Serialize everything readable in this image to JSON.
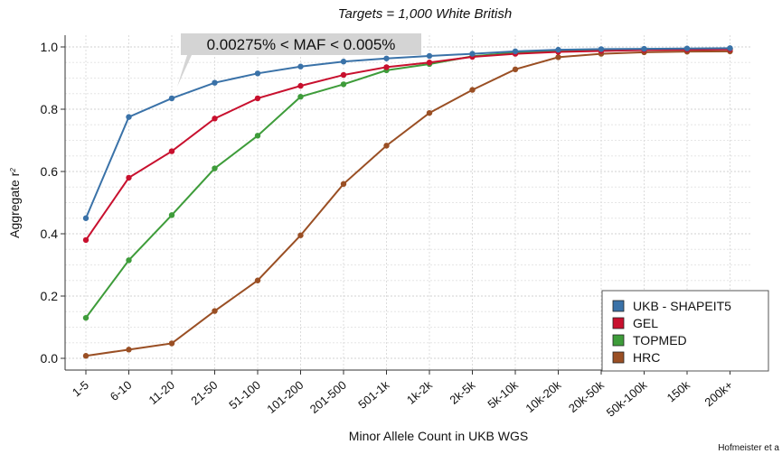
{
  "chart_data": {
    "type": "line",
    "title": "Targets = 1,000 White British",
    "xlabel": "Minor Allele Count in UKB WGS",
    "ylabel": "Aggregate r",
    "ylabel_superscript": "2",
    "ylim": [
      0,
      1.05
    ],
    "yticks": [
      "0.0",
      "0.2",
      "0.4",
      "0.6",
      "0.8",
      "1.0"
    ],
    "ytick_values": [
      0,
      0.2,
      0.4,
      0.6,
      0.8,
      1.0
    ],
    "grid": true,
    "legend_position": "bottom-right",
    "annotation": "0.00275% < MAF < 0.005%",
    "annotation_points_to": "11-20",
    "credit": "Hofmeister et a",
    "categories": [
      "1-5",
      "6-10",
      "11-20",
      "21-50",
      "51-100",
      "101-200",
      "201-500",
      "501-1k",
      "1k-2k",
      "2k-5k",
      "5k-10k",
      "10k-20k",
      "20k-50k",
      "50k-100k",
      "150k",
      "200k+"
    ],
    "series": [
      {
        "name": "UKB - SHAPEIT5",
        "color": "#3a72a8",
        "values": [
          0.45,
          0.775,
          0.835,
          0.885,
          0.915,
          0.937,
          0.953,
          0.963,
          0.971,
          0.978,
          0.986,
          0.991,
          0.993,
          0.994,
          0.995,
          0.996
        ]
      },
      {
        "name": "GEL",
        "color": "#c8102e",
        "values": [
          0.38,
          0.58,
          0.665,
          0.77,
          0.835,
          0.875,
          0.91,
          0.935,
          0.95,
          0.968,
          0.978,
          0.984,
          0.987,
          0.99,
          0.991,
          0.992
        ]
      },
      {
        "name": "TOPMED",
        "color": "#3e9c3a",
        "values": [
          0.13,
          0.315,
          0.46,
          0.61,
          0.715,
          0.84,
          0.88,
          0.925,
          0.945,
          0.97,
          0.982,
          0.988,
          0.991,
          0.993,
          0.994,
          0.995
        ]
      },
      {
        "name": "HRC",
        "color": "#9a4f24",
        "values": [
          0.008,
          0.028,
          0.048,
          0.152,
          0.25,
          0.395,
          0.56,
          0.683,
          0.788,
          0.862,
          0.928,
          0.967,
          0.978,
          0.983,
          0.985,
          0.986
        ]
      }
    ]
  }
}
